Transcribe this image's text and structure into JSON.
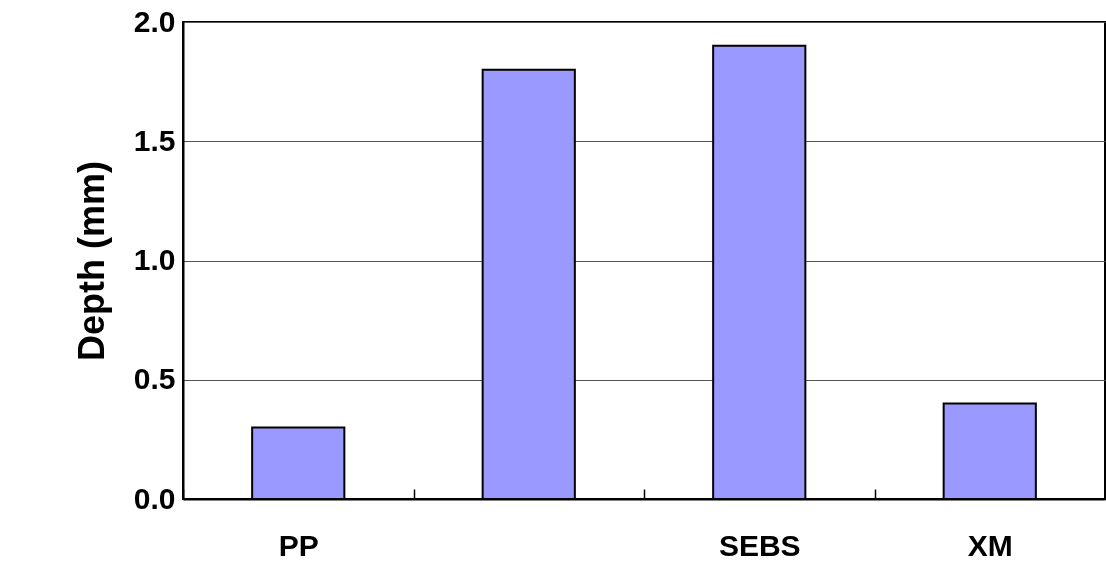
{
  "chart_data": {
    "type": "bar",
    "ylabel": "Depth (mm)",
    "categories": [
      "PP",
      null,
      "SEBS",
      "XM"
    ],
    "values": [
      0.3,
      1.8,
      1.9,
      0.4
    ],
    "color": "#9999ff",
    "ylim": [
      0,
      2.0
    ],
    "yticks": [
      {
        "value": 0,
        "label": "0.0"
      },
      {
        "value": 0.5,
        "label": "0.5"
      },
      {
        "value": 1,
        "label": "1.0"
      },
      {
        "value": 1.5,
        "label": "1.5"
      },
      {
        "value": 2,
        "label": "2.0"
      }
    ],
    "grid": "y"
  }
}
